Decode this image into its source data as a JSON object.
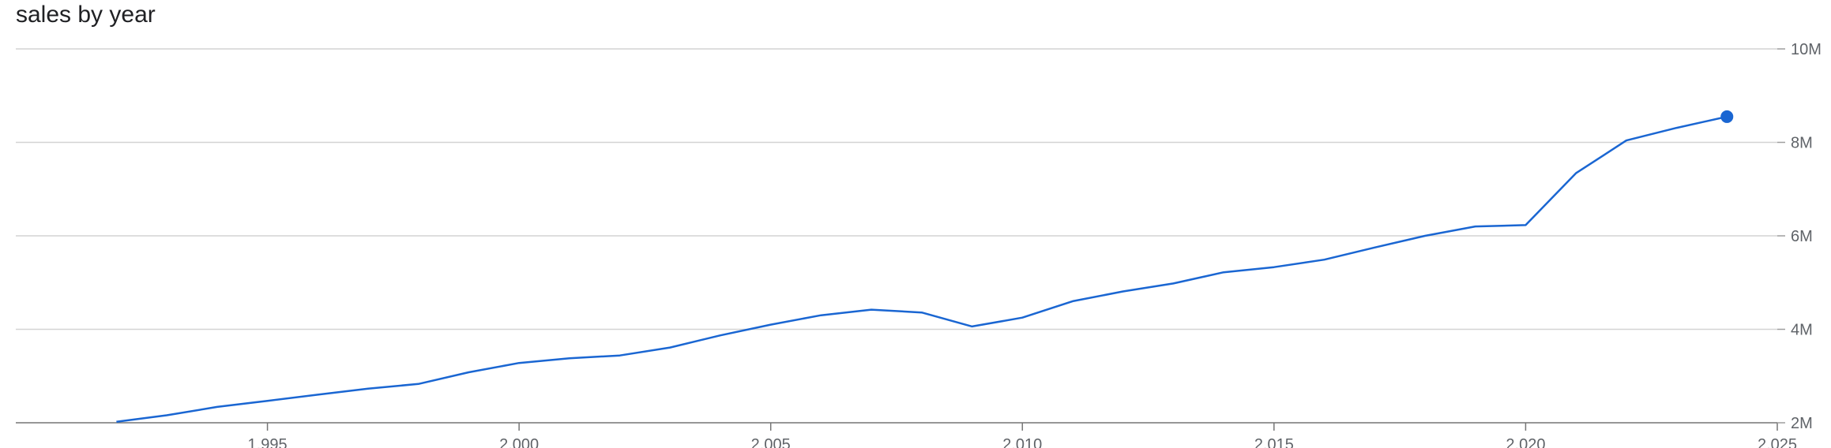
{
  "chart_data": {
    "type": "line",
    "title": "sales by year",
    "xlabel": "",
    "ylabel": "",
    "xlim": [
      1990,
      2025
    ],
    "ylim": [
      2000000,
      10000000
    ],
    "x_ticks": [
      1995,
      2000,
      2005,
      2010,
      2015,
      2020,
      2025
    ],
    "x_tick_labels": [
      "1,995",
      "2,000",
      "2,005",
      "2,010",
      "2,015",
      "2,020",
      "2,025"
    ],
    "y_ticks": [
      2000000,
      4000000,
      6000000,
      8000000,
      10000000
    ],
    "y_tick_labels": [
      "2M",
      "4M",
      "6M",
      "8M",
      "10M"
    ],
    "grid": true,
    "legend": "none",
    "series": [
      {
        "color": "#1a66d2",
        "x": [
          1992,
          1993,
          1994,
          1995,
          1996,
          1997,
          1998,
          1999,
          2000,
          2001,
          2002,
          2003,
          2004,
          2005,
          2006,
          2007,
          2008,
          2009,
          2010,
          2011,
          2012,
          2013,
          2014,
          2015,
          2016,
          2017,
          2018,
          2019,
          2020,
          2021,
          2022,
          2023,
          2024
        ],
        "y": [
          2020000,
          2160000,
          2340000,
          2470000,
          2600000,
          2730000,
          2830000,
          3080000,
          3280000,
          3380000,
          3440000,
          3610000,
          3870000,
          4100000,
          4300000,
          4420000,
          4360000,
          4060000,
          4250000,
          4600000,
          4810000,
          4980000,
          5220000,
          5330000,
          5490000,
          5750000,
          6000000,
          6200000,
          6230000,
          7340000,
          8040000,
          8310000,
          8550000
        ],
        "highlight_last": true
      }
    ]
  }
}
